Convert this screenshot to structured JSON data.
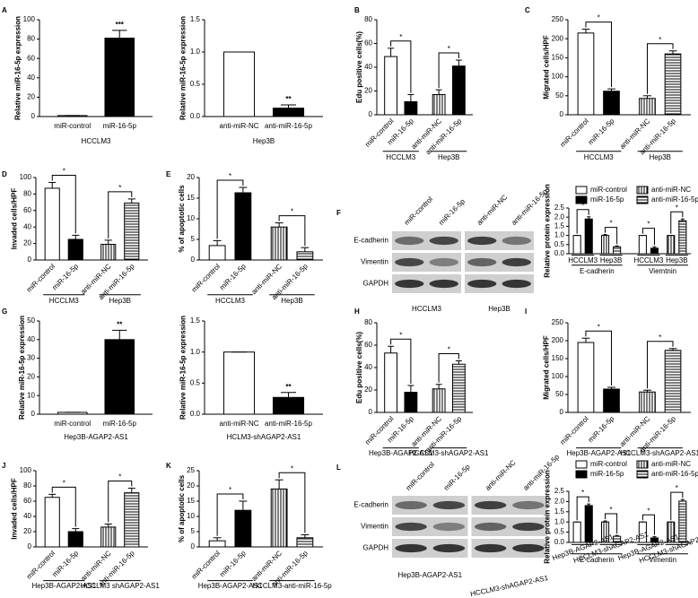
{
  "chart_data": [
    {
      "type": "bar",
      "letter": "A",
      "ylabel": "Relative miR-16-5p expression",
      "categories": [
        "miR-control",
        "miR-16-5p"
      ],
      "values": [
        1,
        81
      ],
      "errors": [
        0,
        8
      ],
      "fills": [
        "white",
        "black"
      ],
      "ylim": [
        0,
        100
      ],
      "yticks": [
        0,
        20,
        40,
        60,
        80,
        100
      ],
      "significance": [
        {
          "label": "***",
          "bars": [
            1
          ]
        }
      ],
      "groups": [
        {
          "label": "HCCLM3",
          "bars": [
            0,
            1
          ]
        }
      ]
    },
    {
      "type": "bar",
      "ylabel": "Relative miR-16-5p expression",
      "categories": [
        "anti-miR-NC",
        "anti-miR-16-5p"
      ],
      "values": [
        1,
        0.13
      ],
      "errors": [
        0,
        0.05
      ],
      "fills": [
        "white",
        "black"
      ],
      "ylim": [
        0,
        1.5
      ],
      "yticks": [
        {
          "value": 0,
          "label": "0.0"
        },
        {
          "value": 0.5,
          "label": "0.5"
        },
        {
          "value": 1,
          "label": "1.0"
        },
        {
          "value": 1.5,
          "label": "1.5"
        }
      ],
      "significance": [
        {
          "label": "**",
          "bars": [
            1
          ]
        }
      ],
      "groups": [
        {
          "label": "Hep3B",
          "bars": [
            0,
            1
          ]
        }
      ]
    },
    {
      "type": "bar",
      "letter": "B",
      "ylabel": "Edu positive cells(%)",
      "categories": [
        "miR-control",
        "miR-16-5p",
        "anti-miR-NC",
        "anti-miR-16-5p"
      ],
      "values": [
        49,
        11,
        17,
        41
      ],
      "errors": [
        7,
        6,
        4,
        5
      ],
      "fills": [
        "white",
        "black",
        "vstripe",
        "black"
      ],
      "ylim": [
        0,
        80
      ],
      "yticks": [
        0,
        20,
        40,
        60,
        80
      ],
      "significance": [
        {
          "label": "*",
          "bars": [
            0,
            1
          ]
        },
        {
          "label": "*",
          "bars": [
            2,
            3
          ]
        }
      ],
      "groups": [
        {
          "label": "HCCLM3",
          "bars": [
            0,
            1
          ]
        },
        {
          "label": "Hep3B",
          "bars": [
            2,
            3
          ]
        }
      ]
    },
    {
      "type": "bar",
      "letter": "C",
      "ylabel": "Migrated cells/HPF",
      "categories": [
        "miR-control",
        "miR-16-5p",
        "anti-miR-NC",
        "anti-miR-16-5p"
      ],
      "values": [
        215,
        62,
        43,
        160
      ],
      "errors": [
        10,
        6,
        7,
        8
      ],
      "fills": [
        "white",
        "black",
        "vstripe",
        "hstripe"
      ],
      "ylim": [
        0,
        250
      ],
      "yticks": [
        0,
        50,
        100,
        150,
        200,
        250
      ],
      "significance": [
        {
          "label": "*",
          "bars": [
            0,
            1
          ]
        },
        {
          "label": "*",
          "bars": [
            2,
            3
          ]
        }
      ],
      "groups": [
        {
          "label": "HCCLM3",
          "bars": [
            0,
            1
          ]
        },
        {
          "label": "Hep3B",
          "bars": [
            2,
            3
          ]
        }
      ]
    },
    {
      "type": "bar",
      "letter": "D",
      "ylabel": "Invaded cells/HPF",
      "categories": [
        "miR-control",
        "miR-16-5p",
        "anti-miR-NC",
        "anti-miR-16-5p"
      ],
      "values": [
        87,
        25,
        19,
        69
      ],
      "errors": [
        7,
        5,
        5,
        5
      ],
      "fills": [
        "white",
        "black",
        "vstripe",
        "hstripe"
      ],
      "ylim": [
        0,
        100
      ],
      "yticks": [
        0,
        20,
        40,
        60,
        80,
        100
      ],
      "significance": [
        {
          "label": "*",
          "bars": [
            0,
            1
          ]
        },
        {
          "label": "*",
          "bars": [
            2,
            3
          ]
        }
      ],
      "groups": [
        {
          "label": "HCCLM3",
          "bars": [
            0,
            1
          ]
        },
        {
          "label": "Hep3B",
          "bars": [
            2,
            3
          ]
        }
      ]
    },
    {
      "type": "bar",
      "letter": "E",
      "ylabel": "% of apoptotic cells",
      "categories": [
        "miR-control",
        "miR-16-5p",
        "anti-miR-NC",
        "anti-miR-16-5p"
      ],
      "values": [
        3.5,
        16.3,
        8,
        2
      ],
      "errors": [
        1.2,
        1.3,
        1,
        1
      ],
      "fills": [
        "white",
        "black",
        "vstripe",
        "hstripe"
      ],
      "ylim": [
        0,
        20
      ],
      "yticks": [
        0,
        5,
        10,
        15,
        20
      ],
      "significance": [
        {
          "label": "*",
          "bars": [
            0,
            1
          ]
        },
        {
          "label": "*",
          "bars": [
            2,
            3
          ]
        }
      ],
      "groups": [
        {
          "label": "HCCLM3",
          "bars": [
            0,
            1
          ]
        },
        {
          "label": "Hep3B",
          "bars": [
            2,
            3
          ]
        }
      ]
    },
    {
      "type": "blot",
      "letter": "F",
      "lanes": [
        "miR-control",
        "miR-16-5p",
        "anti-miR-NC",
        "anti-miR-16-5p"
      ],
      "rows": [
        "E-cadherin",
        "Vimentin",
        "GAPDH"
      ],
      "groups": [
        {
          "label": "HCCLM3",
          "lanes": [
            0,
            1
          ]
        },
        {
          "label": "Hep3B",
          "lanes": [
            2,
            3
          ]
        }
      ]
    },
    {
      "type": "bar",
      "ylabel": "Relative protein expression",
      "values": [
        1,
        1.9,
        1,
        0.38,
        1,
        0.3,
        1,
        1.8
      ],
      "errors": [
        0,
        0.12,
        0.05,
        0.05,
        0,
        0.08,
        0,
        0.1
      ],
      "fills": [
        "white",
        "black",
        "vstripe",
        "hstripe",
        "white",
        "black",
        "vstripe",
        "hstripe"
      ],
      "legend": [
        {
          "name": "miR-control",
          "fill": "white"
        },
        {
          "name": "miR-16-5p",
          "fill": "black"
        },
        {
          "name": "anti-miR-NC",
          "fill": "vstripe"
        },
        {
          "name": "anti-miR-16-5p",
          "fill": "hstripe"
        }
      ],
      "ylim": [
        0,
        2.5
      ],
      "yticks": [
        {
          "value": 0,
          "label": "0.0"
        },
        {
          "value": 0.5,
          "label": "0.5"
        },
        {
          "value": 1,
          "label": "1.0"
        },
        {
          "value": 1.5,
          "label": "1.5"
        },
        {
          "value": 2,
          "label": "2.0"
        },
        {
          "value": 2.5,
          "label": "2.5"
        }
      ],
      "significance": [
        {
          "label": "*",
          "bars": [
            0,
            1
          ]
        },
        {
          "label": "*",
          "bars": [
            2,
            3
          ]
        },
        {
          "label": "*",
          "bars": [
            4,
            5
          ]
        },
        {
          "label": "*",
          "bars": [
            6,
            7
          ]
        }
      ],
      "groups": [
        {
          "label": "HCCLM3",
          "bars": [
            0,
            1
          ]
        },
        {
          "label": "Hep3B",
          "bars": [
            2,
            3
          ]
        },
        {
          "label": "HCCLM3",
          "bars": [
            4,
            5
          ]
        },
        {
          "label": "Hep3B",
          "bars": [
            6,
            7
          ]
        }
      ],
      "supergroups": [
        {
          "label": "E-cadherin",
          "bars": [
            0,
            3
          ]
        },
        {
          "label": "Viemtnin",
          "bars": [
            4,
            7
          ]
        }
      ]
    },
    {
      "type": "bar",
      "letter": "G",
      "ylabel": "Relative miR-16-5p expression",
      "categories": [
        "miR-control",
        "miR-16-5p"
      ],
      "values": [
        1,
        40
      ],
      "errors": [
        0,
        5
      ],
      "fills": [
        "white",
        "black"
      ],
      "ylim": [
        0,
        50
      ],
      "yticks": [
        0,
        10,
        20,
        30,
        40,
        50
      ],
      "significance": [
        {
          "label": "**",
          "bars": [
            1
          ]
        }
      ],
      "groups": [
        {
          "label": "Hep3B-AGAP2-AS1",
          "bars": [
            0,
            1
          ]
        }
      ]
    },
    {
      "type": "bar",
      "ylabel": "Relative miR-16-5p expression",
      "categories": [
        "anti-miR-NC",
        "anti-miR-16-5p"
      ],
      "values": [
        1,
        0.27
      ],
      "errors": [
        0,
        0.08
      ],
      "fills": [
        "white",
        "black"
      ],
      "ylim": [
        0,
        1.5
      ],
      "yticks": [
        {
          "value": 0,
          "label": "0.0"
        },
        {
          "value": 0.5,
          "label": "0.5"
        },
        {
          "value": 1,
          "label": "1.0"
        },
        {
          "value": 1.5,
          "label": "1.5"
        }
      ],
      "significance": [
        {
          "label": "**",
          "bars": [
            1
          ]
        }
      ],
      "groups": [
        {
          "label": "HCLM3-shAGAP2-AS1",
          "bars": [
            0,
            1
          ]
        }
      ]
    },
    {
      "type": "bar",
      "letter": "H",
      "ylabel": "Edu positive cells(%)",
      "categories": [
        "miR-control",
        "miR-16-5p",
        "anti-miR-NC",
        "anti-miR-16-5p"
      ],
      "values": [
        53,
        18,
        21,
        43
      ],
      "errors": [
        6,
        6,
        4,
        3
      ],
      "fills": [
        "white",
        "black",
        "vstripe",
        "hstripe"
      ],
      "ylim": [
        0,
        80
      ],
      "yticks": [
        0,
        20,
        40,
        60,
        80
      ],
      "significance": [
        {
          "label": "*",
          "bars": [
            0,
            1
          ]
        },
        {
          "label": "*",
          "bars": [
            2,
            3
          ]
        }
      ],
      "groups": [
        {
          "label": "Hep3B-AGAP2-AS1",
          "bars": [
            0,
            1
          ]
        },
        {
          "label": "HCCLM3-shAGAP2-AS1",
          "bars": [
            2,
            3
          ]
        }
      ]
    },
    {
      "type": "bar",
      "letter": "I",
      "ylabel": "Migrated cells/HPF",
      "categories": [
        "miR-control",
        "miR-16-5p",
        "anti-miR-NC",
        "anti-miR-16-5p"
      ],
      "values": [
        195,
        65,
        57,
        173
      ],
      "errors": [
        12,
        5,
        5,
        5
      ],
      "fills": [
        "white",
        "black",
        "vstripe",
        "hstripe"
      ],
      "ylim": [
        0,
        250
      ],
      "yticks": [
        0,
        50,
        100,
        150,
        200,
        250
      ],
      "significance": [
        {
          "label": "*",
          "bars": [
            0,
            1
          ]
        },
        {
          "label": "*",
          "bars": [
            2,
            3
          ]
        }
      ],
      "groups": [
        {
          "label": "Hep3B-AGAP2-AS1",
          "bars": [
            0,
            1
          ]
        },
        {
          "label": "HCCLM3-shAGAP2-AS1",
          "bars": [
            2,
            3
          ]
        }
      ]
    },
    {
      "type": "bar",
      "letter": "J",
      "ylabel": "Invaded cells/HPF",
      "categories": [
        "miR-control",
        "miR-16-5p",
        "anti-miR-NC",
        "anti-miR-16-5p"
      ],
      "values": [
        65,
        20,
        26,
        71
      ],
      "errors": [
        4,
        4,
        4,
        6
      ],
      "fills": [
        "white",
        "black",
        "vstripe",
        "hstripe"
      ],
      "ylim": [
        0,
        100
      ],
      "yticks": [
        0,
        20,
        40,
        60,
        80,
        100
      ],
      "significance": [
        {
          "label": "*",
          "bars": [
            0,
            1
          ]
        },
        {
          "label": "*",
          "bars": [
            2,
            3
          ]
        }
      ],
      "groups": [
        {
          "label": "Hep3B-AGAP2-AS1",
          "bars": [
            0,
            1
          ]
        },
        {
          "label": "HCCLM3 shAGAP2-AS1",
          "bars": [
            2,
            3
          ]
        }
      ]
    },
    {
      "type": "bar",
      "letter": "K",
      "ylabel": "% of apoptotic cells",
      "categories": [
        "miR-control",
        "miR-16-5p",
        "anti-miR-NC",
        "anti-miR-16-5p"
      ],
      "values": [
        2,
        12,
        19,
        3
      ],
      "errors": [
        1,
        3,
        3,
        1
      ],
      "fills": [
        "white",
        "black",
        "vstripe",
        "hstripe"
      ],
      "ylim": [
        0,
        25
      ],
      "yticks": [
        0,
        5,
        10,
        15,
        20,
        25
      ],
      "significance": [
        {
          "label": "*",
          "bars": [
            0,
            1
          ]
        },
        {
          "label": "*",
          "bars": [
            2,
            3
          ]
        }
      ],
      "groups": [
        {
          "label": "Hep3B-AGAP2-AS1",
          "bars": [
            0,
            1
          ]
        },
        {
          "label": "HCCLM3-anti-miR-16-5p",
          "bars": [
            2,
            3
          ]
        }
      ]
    },
    {
      "type": "blot",
      "letter": "L",
      "lanes": [
        "miR-control",
        "miR-16-5p",
        "anti-miR-NC",
        "anti-miR-16-5p"
      ],
      "rows": [
        "E-cadherin",
        "Vimentin",
        "GAPDH"
      ],
      "groups": [
        {
          "label": "Hep3B-AGAP2-AS1",
          "lanes": [
            0,
            1
          ]
        },
        {
          "label": "HCCLM3-shAGAP2-AS1",
          "lanes": [
            2,
            3
          ]
        }
      ]
    },
    {
      "type": "bar",
      "ylabel": "Relative protein expression",
      "values": [
        1,
        1.8,
        1,
        0.3,
        1,
        0.22,
        1,
        2.02
      ],
      "errors": [
        0,
        0.08,
        0.05,
        0.04,
        0,
        0.06,
        0,
        0.08
      ],
      "fills": [
        "white",
        "black",
        "vstripe",
        "hstripe",
        "white",
        "black",
        "vstripe",
        "hstripe"
      ],
      "legend": [
        {
          "name": "miR-control",
          "fill": "white"
        },
        {
          "name": "miR-16-5p",
          "fill": "black"
        },
        {
          "name": "anti-miR-NC",
          "fill": "vstripe"
        },
        {
          "name": "anti-miR-16-5p",
          "fill": "hstripe"
        }
      ],
      "ylim": [
        0,
        2.5
      ],
      "yticks": [
        {
          "value": 0,
          "label": "0.0"
        },
        {
          "value": 0.5,
          "label": "0.5"
        },
        {
          "value": 1,
          "label": "1.0"
        },
        {
          "value": 1.5,
          "label": "1.5"
        },
        {
          "value": 2,
          "label": "2.0"
        },
        {
          "value": 2.5,
          "label": "2.5"
        }
      ],
      "significance": [
        {
          "label": "*",
          "bars": [
            0,
            1
          ]
        },
        {
          "label": "*",
          "bars": [
            2,
            3
          ]
        },
        {
          "label": "*",
          "bars": [
            4,
            5
          ]
        },
        {
          "label": "*",
          "bars": [
            6,
            7
          ]
        }
      ],
      "groups": [
        {
          "label": "Hep3B-AGAP2-AS1",
          "bars": [
            0,
            1
          ]
        },
        {
          "label": "HCCLM3-shAGAP2-AS1",
          "bars": [
            2,
            3
          ]
        },
        {
          "label": "Hep3B-AGAP2-AS1",
          "bars": [
            4,
            5
          ]
        },
        {
          "label": "HCCLM3-shAGAP2-AS1",
          "bars": [
            6,
            7
          ]
        }
      ],
      "supergroups": [
        {
          "label": "E-cadherin",
          "bars": [
            0,
            3
          ]
        },
        {
          "label": "Vimentin",
          "bars": [
            4,
            7
          ]
        }
      ]
    }
  ]
}
